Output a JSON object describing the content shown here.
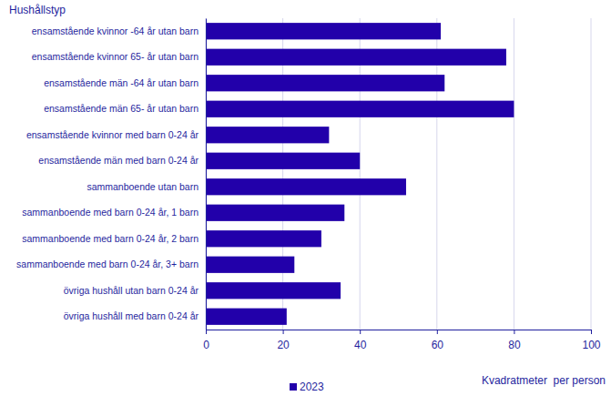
{
  "chart_data": {
    "type": "bar",
    "orientation": "horizontal",
    "x_label": "Kvadratmeter  per person",
    "y_label": "Hushållstyp",
    "categories": [
      "ensamstående kvinnor -64 år utan barn",
      "ensamstående kvinnor 65- år utan barn",
      "ensamstående män -64 år utan barn",
      "ensamstående män 65- år utan barn",
      "ensamstående kvinnor med barn 0-24 år",
      "ensamstående män med barn 0-24 år",
      "sammanboende utan barn",
      "sammanboende med barn 0-24 år, 1 barn",
      "sammanboende med barn 0-24 år, 2 barn",
      "sammanboende med barn 0-24 år, 3+ barn",
      "övriga hushåll utan barn 0-24 år",
      "övriga hushåll med barn 0-24 år"
    ],
    "series": [
      {
        "name": "2023",
        "color": "#2200aa",
        "values": [
          61,
          78,
          62,
          80,
          32,
          40,
          52,
          36,
          30,
          23,
          35,
          21
        ]
      }
    ],
    "xlim": [
      0,
      100
    ],
    "xticks": [
      0,
      20,
      40,
      60,
      80,
      100
    ],
    "grid": true,
    "legend": "bottom"
  }
}
